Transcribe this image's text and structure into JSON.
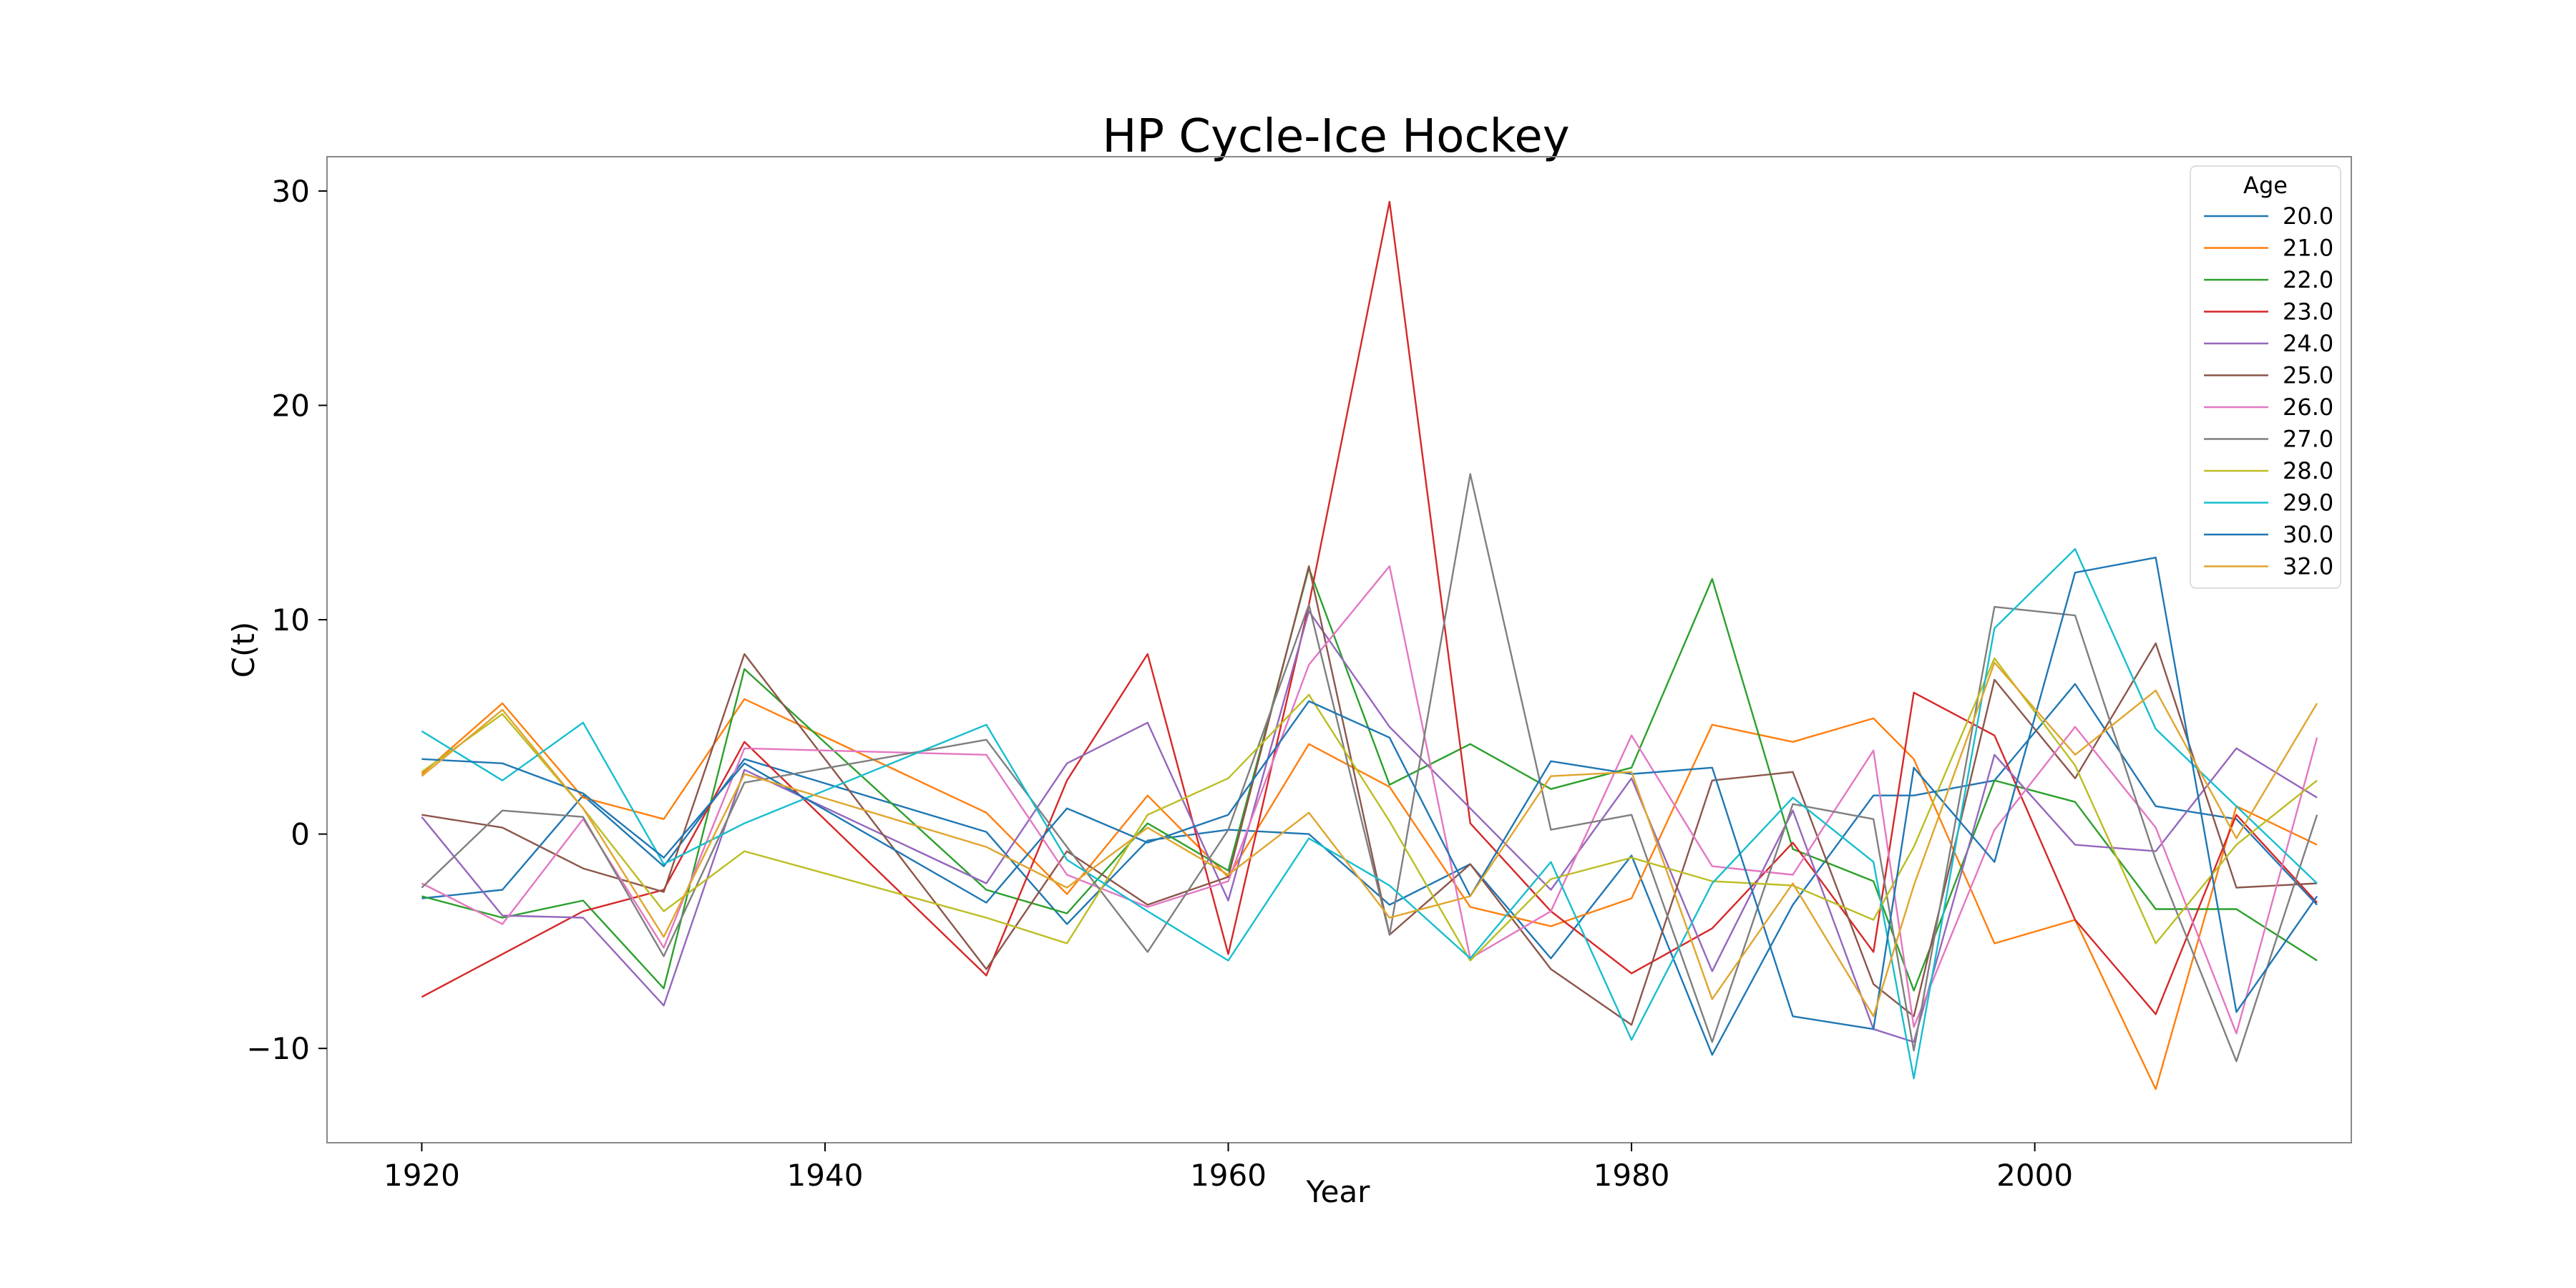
{
  "chart_data": {
    "type": "line",
    "title": "HP Cycle-Ice Hockey",
    "xlabel": "Year",
    "ylabel": "C(t)",
    "xlim": [
      1915.3,
      2015.7
    ],
    "ylim": [
      -14.4,
      31.6
    ],
    "xticks": [
      1920,
      1940,
      1960,
      1980,
      2000
    ],
    "yticks": [
      -10,
      0,
      10,
      20,
      30
    ],
    "ytick_labels": [
      "−10",
      "0",
      "10",
      "20",
      "30"
    ],
    "grid": false,
    "legend": {
      "title": "Age",
      "position": "top-right"
    },
    "x": [
      1920,
      1924,
      1928,
      1932,
      1936,
      1948,
      1952,
      1956,
      1960,
      1964,
      1968,
      1972,
      1976,
      1980,
      1984,
      1988,
      1992,
      1994,
      1998,
      2002,
      2006,
      2010,
      2014
    ],
    "series": [
      {
        "name": "20.0",
        "color": "#1f77b4",
        "values": [
          -3.0,
          -2.6,
          1.8,
          -1.5,
          3.5,
          0.1,
          -4.2,
          -0.3,
          0.2,
          0.0,
          -3.3,
          -1.4,
          -5.8,
          -1.0,
          -10.3,
          -3.3,
          1.8,
          1.8,
          2.5,
          7.0,
          1.3,
          0.7,
          -3.3
        ]
      },
      {
        "name": "21.0",
        "color": "#ff7f0e",
        "values": [
          2.8,
          6.1,
          1.7,
          0.7,
          6.3,
          1.0,
          -2.8,
          1.8,
          -2.0,
          4.2,
          2.2,
          -3.4,
          -4.3,
          -3.0,
          5.1,
          4.3,
          5.4,
          3.5,
          -5.1,
          -4.0,
          -11.9,
          1.3,
          -0.5
        ]
      },
      {
        "name": "22.0",
        "color": "#2ca02c",
        "values": [
          -2.9,
          -3.9,
          -3.1,
          -7.2,
          7.7,
          -2.6,
          -3.7,
          0.5,
          -1.7,
          12.4,
          2.3,
          4.2,
          2.1,
          3.1,
          11.9,
          -0.7,
          -2.2,
          -7.3,
          2.5,
          1.5,
          -3.5,
          -3.5,
          -5.9
        ]
      },
      {
        "name": "23.0",
        "color": "#d62728",
        "values": [
          -7.6,
          -5.6,
          -3.6,
          -2.6,
          4.3,
          -6.6,
          2.5,
          8.4,
          -5.6,
          10.7,
          29.5,
          0.5,
          -3.6,
          -6.5,
          -4.4,
          -0.4,
          -5.5,
          6.6,
          4.6,
          -4.0,
          -8.4,
          0.9,
          -3.2
        ]
      },
      {
        "name": "24.0",
        "color": "#9467bd",
        "values": [
          0.8,
          -3.8,
          -3.9,
          -8.0,
          3.0,
          -2.3,
          3.3,
          5.2,
          -3.1,
          10.4,
          5.0,
          1.2,
          -2.6,
          2.6,
          -6.4,
          1.1,
          -9.1,
          -9.7,
          3.7,
          -0.5,
          -0.8,
          4.0,
          1.7
        ]
      },
      {
        "name": "25.0",
        "color": "#8c564b",
        "values": [
          0.9,
          0.3,
          -1.6,
          -2.7,
          8.4,
          -6.3,
          -0.8,
          -3.3,
          -2.0,
          12.5,
          -4.7,
          -1.4,
          -6.3,
          -8.9,
          2.5,
          2.9,
          -7.0,
          -8.5,
          7.2,
          2.6,
          8.9,
          -2.5,
          -2.3
        ]
      },
      {
        "name": "26.0",
        "color": "#e377c2",
        "values": [
          -2.3,
          -4.2,
          0.7,
          -5.3,
          4.0,
          3.7,
          -1.9,
          -3.4,
          -2.2,
          7.9,
          12.5,
          -5.8,
          -3.6,
          4.6,
          -1.5,
          -1.9,
          3.9,
          -9.0,
          0.2,
          5.0,
          0.3,
          -9.3,
          4.5
        ]
      },
      {
        "name": "27.0",
        "color": "#7f7f7f",
        "values": [
          -2.5,
          1.1,
          0.8,
          -5.7,
          2.4,
          4.4,
          -0.6,
          -5.5,
          0.2,
          10.7,
          -4.7,
          16.8,
          0.2,
          0.9,
          -9.7,
          1.4,
          0.7,
          -10.1,
          10.6,
          10.2,
          -1.2,
          -10.6,
          0.9
        ]
      },
      {
        "name": "28.0",
        "color": "#bcbd22",
        "values": [
          2.9,
          5.6,
          1.2,
          -3.6,
          -0.8,
          -3.9,
          -5.1,
          0.9,
          2.6,
          6.5,
          0.6,
          -5.9,
          -2.1,
          -1.1,
          -2.2,
          -2.4,
          -4.0,
          -0.6,
          8.2,
          3.2,
          -5.1,
          -0.5,
          2.5
        ]
      },
      {
        "name": "29.0",
        "color": "#17becf",
        "values": [
          4.8,
          2.5,
          5.2,
          -1.4,
          0.5,
          5.1,
          -1.2,
          -3.6,
          -5.9,
          -0.2,
          -2.4,
          -5.8,
          -1.3,
          -9.6,
          -2.3,
          1.7,
          -1.3,
          -11.4,
          9.6,
          13.3,
          4.9,
          1.3,
          -2.3
        ]
      },
      {
        "name": "30.0",
        "color": "#1f77b4",
        "values": [
          3.5,
          3.3,
          1.9,
          -1.1,
          3.3,
          -3.2,
          1.2,
          -0.4,
          0.9,
          6.2,
          4.5,
          -2.9,
          3.4,
          2.8,
          3.1,
          -8.5,
          -9.1,
          3.1,
          -1.3,
          12.2,
          12.9,
          -8.3,
          -2.9
        ]
      },
      {
        "name": "32.0",
        "color": "#e0a52c",
        "values": [
          2.7,
          5.8,
          1.2,
          -4.8,
          2.8,
          -0.6,
          -2.5,
          0.3,
          -1.9,
          1.0,
          -3.9,
          -2.9,
          2.7,
          2.9,
          -7.7,
          -2.3,
          -8.5,
          -2.4,
          8.0,
          3.7,
          6.7,
          -0.2,
          6.1
        ]
      }
    ]
  }
}
